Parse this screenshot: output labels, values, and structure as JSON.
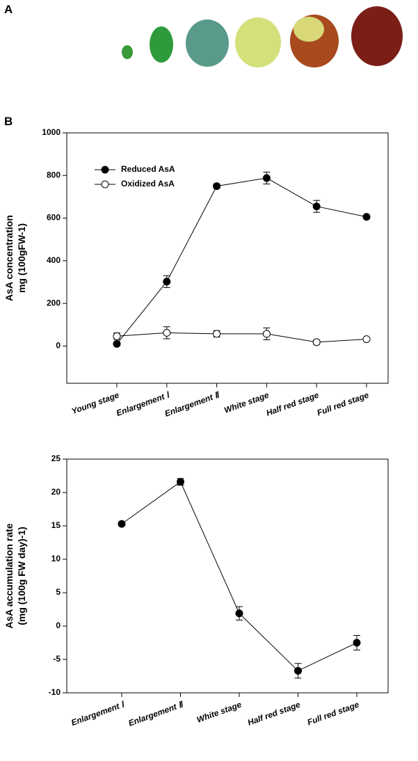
{
  "panel_labels": [
    "A",
    "B"
  ],
  "chart_data": [
    {
      "type": "line",
      "ylabel": [
        "AsA concentration",
        "mg (100gFW-1)"
      ],
      "categories": [
        "Young stage",
        "Enlargement Ⅰ",
        "Enlargement Ⅱ",
        "White stage",
        "Half red stage",
        "Full red stage"
      ],
      "series": [
        {
          "name": "Reduced AsA",
          "color": "#000000",
          "marker_fill": "#000000",
          "values": [
            10,
            302,
            750,
            788,
            655,
            606
          ],
          "errors": [
            8,
            28,
            10,
            28,
            28,
            8
          ]
        },
        {
          "name": "Oxidized AsA",
          "color": "#000000",
          "marker_fill": "#ffffff",
          "values": [
            46,
            62,
            57,
            57,
            18,
            32
          ],
          "errors": [
            15,
            28,
            15,
            28,
            10,
            5
          ]
        }
      ],
      "ylim": [
        -175,
        1000
      ],
      "yticks": [
        0,
        200,
        400,
        600,
        800,
        1000
      ],
      "legend": "upper left"
    },
    {
      "type": "line",
      "ylabel": [
        "AsA accumulation rate",
        "(mg (100g FW day)-1)"
      ],
      "categories": [
        "Enlargement Ⅰ",
        "Enlargement Ⅱ",
        "White stage",
        "Half red stage",
        "Full red stage"
      ],
      "series": [
        {
          "color": "#000000",
          "marker_fill": "#000000",
          "values": [
            15.3,
            21.6,
            1.9,
            -6.7,
            -2.5
          ],
          "errors": [
            0.3,
            0.5,
            1.0,
            1.1,
            1.1
          ]
        }
      ],
      "ylim": [
        -10,
        25
      ],
      "yticks": [
        -10,
        -5,
        0,
        5,
        10,
        15,
        20,
        25
      ]
    }
  ]
}
